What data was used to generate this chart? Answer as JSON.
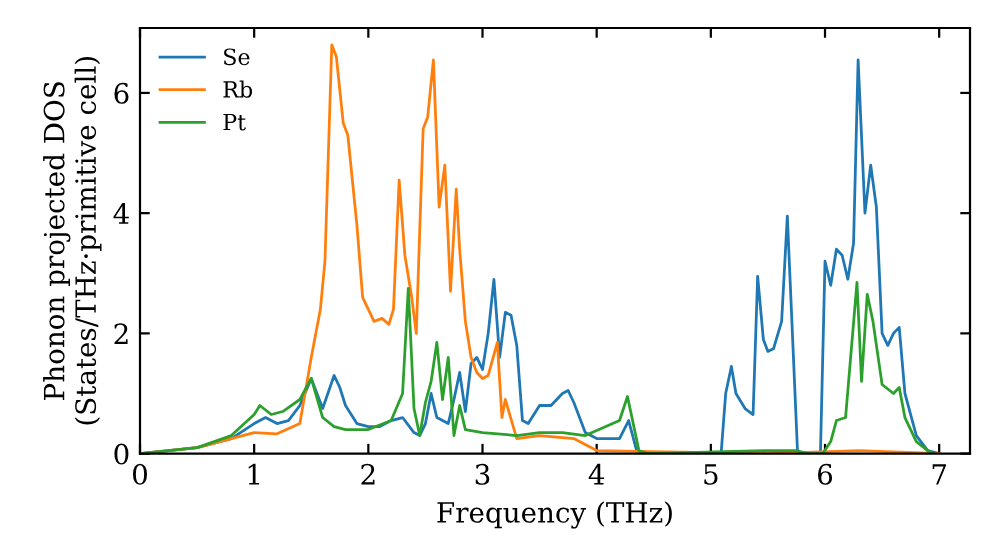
{
  "chart_data": {
    "type": "line",
    "xlabel": "Frequency (THz)",
    "ylabel": "Phonon projected DOS\n(States/THz·primitive cell)",
    "xlim": [
      0,
      7.27
    ],
    "ylim": [
      0,
      7.08
    ],
    "xticks": [
      0,
      1,
      2,
      3,
      4,
      5,
      6,
      7
    ],
    "yticks": [
      0,
      2,
      4,
      6
    ],
    "grid": false,
    "legend": "top left",
    "series": [
      {
        "name": "Se",
        "color": "#1f77b4",
        "x": [
          0,
          0.5,
          0.8,
          1.0,
          1.1,
          1.2,
          1.3,
          1.4,
          1.5,
          1.6,
          1.7,
          1.75,
          1.8,
          1.9,
          2.0,
          2.1,
          2.2,
          2.3,
          2.4,
          2.45,
          2.5,
          2.55,
          2.6,
          2.7,
          2.75,
          2.8,
          2.85,
          2.9,
          2.95,
          3.0,
          3.05,
          3.1,
          3.15,
          3.2,
          3.25,
          3.3,
          3.35,
          3.4,
          3.5,
          3.6,
          3.7,
          3.75,
          3.8,
          3.9,
          4.0,
          4.2,
          4.28,
          4.35,
          4.4,
          5.09,
          5.13,
          5.18,
          5.22,
          5.3,
          5.37,
          5.41,
          5.46,
          5.5,
          5.55,
          5.62,
          5.67,
          5.76,
          5.96,
          6.0,
          6.05,
          6.1,
          6.15,
          6.2,
          6.25,
          6.29,
          6.35,
          6.4,
          6.45,
          6.5,
          6.55,
          6.6,
          6.65,
          6.7,
          6.8,
          6.9,
          7.0
        ],
        "values": [
          0,
          0.1,
          0.25,
          0.5,
          0.6,
          0.5,
          0.55,
          0.8,
          1.25,
          0.75,
          1.3,
          1.1,
          0.8,
          0.5,
          0.45,
          0.45,
          0.55,
          0.6,
          0.35,
          0.3,
          0.5,
          1.0,
          0.6,
          0.5,
          0.9,
          1.35,
          0.7,
          1.5,
          1.6,
          1.4,
          2.0,
          2.9,
          1.6,
          2.35,
          2.3,
          1.8,
          0.55,
          0.5,
          0.8,
          0.8,
          1.0,
          1.05,
          0.85,
          0.35,
          0.25,
          0.25,
          0.55,
          0.05,
          0,
          0,
          1.0,
          1.45,
          1.0,
          0.75,
          0.65,
          2.95,
          1.9,
          1.7,
          1.75,
          2.2,
          3.95,
          0,
          0,
          3.2,
          2.8,
          3.4,
          3.3,
          2.9,
          3.5,
          6.55,
          4.0,
          4.8,
          4.1,
          2.0,
          1.8,
          2.0,
          2.1,
          1.0,
          0.3,
          0.05,
          0
        ]
      },
      {
        "name": "Rb",
        "color": "#ff7f0e",
        "x": [
          0,
          0.5,
          0.8,
          1.0,
          1.2,
          1.4,
          1.5,
          1.58,
          1.62,
          1.65,
          1.68,
          1.72,
          1.78,
          1.82,
          1.9,
          1.95,
          2.05,
          2.12,
          2.18,
          2.22,
          2.27,
          2.32,
          2.38,
          2.42,
          2.48,
          2.52,
          2.57,
          2.62,
          2.67,
          2.72,
          2.77,
          2.8,
          2.85,
          2.9,
          2.95,
          3.0,
          3.05,
          3.13,
          3.17,
          3.2,
          3.3,
          3.5,
          3.8,
          4.0,
          5.5,
          6.3,
          7.0
        ],
        "values": [
          0,
          0.1,
          0.25,
          0.35,
          0.33,
          0.5,
          1.6,
          2.4,
          3.2,
          5.0,
          6.8,
          6.6,
          5.5,
          5.3,
          3.8,
          2.6,
          2.2,
          2.25,
          2.15,
          2.4,
          4.55,
          3.3,
          2.6,
          2.0,
          5.4,
          5.6,
          6.55,
          4.1,
          4.8,
          2.7,
          4.4,
          3.4,
          2.2,
          1.6,
          1.35,
          1.25,
          1.3,
          1.85,
          0.6,
          0.9,
          0.25,
          0.3,
          0.25,
          0.05,
          0,
          0.05,
          0
        ]
      },
      {
        "name": "Pt",
        "color": "#2ca02c",
        "x": [
          0,
          0.5,
          0.8,
          1.0,
          1.05,
          1.15,
          1.25,
          1.4,
          1.5,
          1.6,
          1.7,
          1.8,
          2.0,
          2.2,
          2.3,
          2.35,
          2.4,
          2.45,
          2.5,
          2.55,
          2.6,
          2.65,
          2.7,
          2.75,
          2.8,
          2.85,
          3.0,
          3.3,
          3.5,
          3.7,
          3.9,
          4.2,
          4.27,
          4.32,
          4.37,
          4.45,
          5.5,
          5.75,
          5.85,
          5.98,
          6.05,
          6.1,
          6.18,
          6.28,
          6.32,
          6.37,
          6.42,
          6.5,
          6.6,
          6.65,
          6.7,
          6.8,
          6.9,
          6.95
        ],
        "values": [
          0,
          0.1,
          0.3,
          0.65,
          0.8,
          0.65,
          0.7,
          0.9,
          1.25,
          0.6,
          0.45,
          0.4,
          0.4,
          0.55,
          1.0,
          2.75,
          0.75,
          0.3,
          0.85,
          1.2,
          1.85,
          0.9,
          1.6,
          0.3,
          0.8,
          0.4,
          0.35,
          0.3,
          0.35,
          0.35,
          0.3,
          0.55,
          0.95,
          0.5,
          0.05,
          0,
          0.05,
          0.05,
          0,
          0,
          0.2,
          0.55,
          0.6,
          2.85,
          1.2,
          2.65,
          2.2,
          1.15,
          1.0,
          1.1,
          0.6,
          0.2,
          0.05,
          0
        ]
      }
    ]
  }
}
